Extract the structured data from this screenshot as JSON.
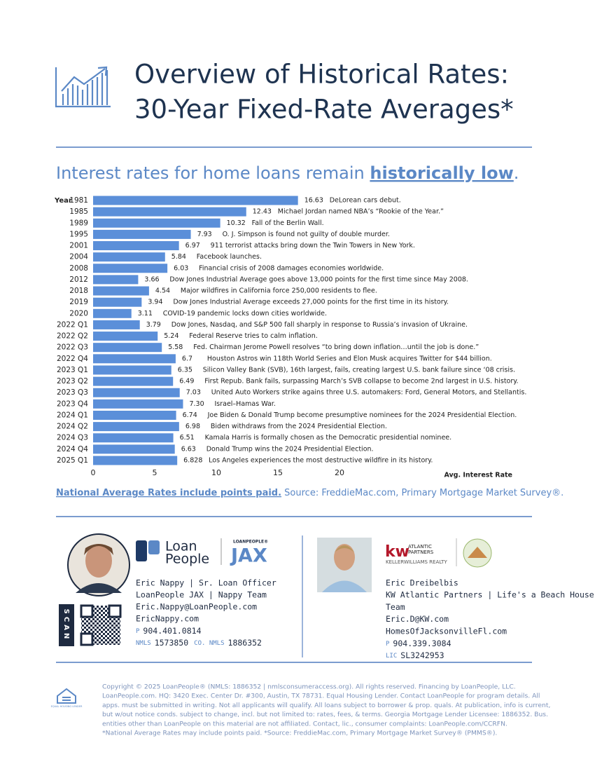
{
  "header": {
    "title_lines": [
      "Overview of Historical Rates:",
      "30-Year Fixed-Rate Averages*"
    ],
    "subtitle": {
      "lead": "Interest rates for home loans remain ",
      "emphasis": "historically low",
      "end": "."
    }
  },
  "chart_data": {
    "type": "bar",
    "orientation": "horizontal",
    "y_label": "Year",
    "x_label": "Avg. Interest Rate",
    "categories": [
      "1981",
      "1985",
      "1989",
      "1995",
      "2001",
      "2004",
      "2008",
      "2012",
      "2018",
      "2019",
      "2020",
      "2022 Q1",
      "2022 Q2",
      "2022 Q3",
      "2022 Q4",
      "2023 Q1",
      "2023 Q2",
      "2023 Q3",
      "2023 Q4",
      "2024 Q1",
      "2024 Q2",
      "2024 Q3",
      "2024 Q4",
      "2025 Q1"
    ],
    "values": [
      16.63,
      12.43,
      10.32,
      7.93,
      6.97,
      5.84,
      6.03,
      3.66,
      4.54,
      3.94,
      3.11,
      3.79,
      5.24,
      5.58,
      6.7,
      6.35,
      6.49,
      7.03,
      7.3,
      6.74,
      6.98,
      6.51,
      6.63,
      6.828
    ],
    "value_labels": [
      "16.63",
      "12.43",
      "10.32",
      "7.93",
      "6.97",
      "5.84",
      "6.03",
      "3.66",
      "4.54",
      "3.94",
      "3.11",
      "3.79",
      "5.24",
      "5.58",
      "6.7",
      "6.35",
      "6.49",
      "7.03",
      "7.30",
      "6.74",
      "6.98",
      "6.51",
      "6.63",
      "6.828"
    ],
    "annotations": [
      "DeLorean cars debut.",
      "Michael Jordan named NBA’s “Rookie of the Year.”",
      "Fall of the Berlin Wall.",
      "O. J. Simpson is found not guilty of double murder.",
      "911 terrorist attacks bring down the Twin Towers in New York.",
      "Facebook launches.",
      "Financial crisis of 2008 damages economies worldwide.",
      "Dow Jones Industrial Average goes above 13,000 points for the first time since May 2008.",
      "Major wildfires in California force 250,000 residents to flee.",
      "Dow Jones Industrial Average exceeds 27,000 points for the first time in its history.",
      "COVID-19 pandemic locks down cities worldwide.",
      "Dow Jones, Nasdaq, and S&P 500 fall sharply in response to Russia’s invasion of Ukraine.",
      "Federal Reserve tries to calm inflation.",
      "Fed. Chairman Jerome Powell resolves “to bring down inflation…until the job is done.”",
      "Houston Astros win 118th World Series and Elon Musk acquires Twitter for $44 billion.",
      "Silicon Valley Bank (SVB), 16th largest, fails, creating largest U.S. bank failure since ‘08 crisis.",
      "First Repub. Bank fails, surpassing March’s SVB collapse to become 2nd largest in U.S. history.",
      "United Auto Workers strike agains three U.S. automakers: Ford, General Motors, and Stellantis.",
      "Israel–Hamas War.",
      "Joe Biden & Donald Trump become presumptive nominees for the 2024 Presidential Election.",
      "Biden withdraws from the 2024 Presidential Election.",
      "Kamala Harris is formally chosen as the Democratic presidential nominee.",
      "Donald Trump wins the 2024 Presidential Election.",
      "Los Angeles experiences the most destructive wildfire in its history."
    ],
    "color": "#5b8fd9",
    "xlim": [
      0,
      20
    ],
    "xticks": [
      0,
      5,
      10,
      15,
      20
    ],
    "grid": false
  },
  "footnote": {
    "emphasis": "National Average Rates include points paid.",
    "source": " Source: FreddieMac.com, Primary Mortgage Market Survey®."
  },
  "contacts": [
    {
      "logo": {
        "brand_top": "Loan",
        "brand_bottom": "People",
        "tag": "LOANPEOPLE®",
        "tag_big": "JAX"
      },
      "scan": "SCAN",
      "lines": [
        "Eric Nappy | Sr. Loan Officer",
        "LoanPeople JAX | Nappy Team",
        "Eric.Nappy@LoanPeople.com",
        "EricNappy.com"
      ],
      "phone": {
        "label": "P",
        "value": "904.401.0814"
      },
      "nmls": {
        "label": "NMLS",
        "value": "1573850",
        "co_label": "CO. NMLS",
        "co_value": "1886352"
      }
    },
    {
      "logo": {
        "kw": "kw",
        "line1": "ATLANTIC",
        "line2": "PARTNERS",
        "line3": "KELLERWILLIAMS REALTY"
      },
      "lines": [
        "Eric Dreibelbis",
        "KW Atlantic Partners | Life's a Beach House",
        "Team",
        "Eric.D@KW.com",
        "HomesOfJacksonvilleFl.com"
      ],
      "phone": {
        "label": "P",
        "value": "904.339.3084"
      },
      "license": {
        "label": "LIC",
        "value": "SL3242953"
      }
    }
  ],
  "copyright_lines": [
    "Copyright © 2025 LoanPeople® (NMLS: 1886352 | nmlsconsumeraccess.org). All rights reserved. Financing by LoanPeople, LLC.",
    "LoanPeople.com. HQ: 3420 Exec. Center Dr. #300, Austin, TX 78731. Equal Housing Lender. Contact LoanPeople for program details. All",
    "apps. must be submitted in writing. Not all applicants will qualify. All loans subject to borrower & prop. quals. At publication, info is current,",
    "but w/out notice conds. subject to change, incl. but not limited to: rates, fees, & terms. Georgia Mortgage Lender Licensee: 1886352. Bus.",
    "entities other than LoanPeople on this material are not affiliated. Contact, lic., consumer complaints: LoanPeople.com/CCRFN.",
    "*National Average Rates may include points paid. *Source: FreddieMac.com, Primary Mortgage Market Survey® (PMMS®)."
  ],
  "equal_housing": "EQUAL HOUSING LENDER"
}
